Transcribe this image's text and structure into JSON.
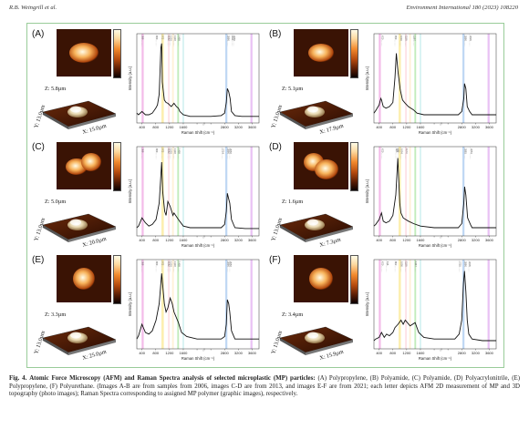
{
  "header": {
    "authors": "R.B. Weingrill et al.",
    "journal": "Environment International 180 (2023) 108220"
  },
  "panels": [
    {
      "letter": "(A)",
      "x_label": "X: 15.0µm",
      "y_label": "Y: 13.0µm",
      "z_label": "Z: 5.8µm",
      "peak_labels": [
        "398",
        "809",
        "972",
        "1152",
        "1219",
        "1330",
        "1458",
        "2880",
        "3011",
        "3059"
      ],
      "peak_colors": [
        "#e040c0",
        "#f5d020",
        "#50c840",
        "#4a90e0",
        "#c050e0"
      ]
    },
    {
      "letter": "(B)",
      "x_label": "X: 17.9µm",
      "y_label": "Y: 13.0µm",
      "z_label": "Z: 5.1µm",
      "peak_labels": [
        "470",
        "859",
        "1016",
        "1159",
        "1397",
        "2880",
        "3029"
      ],
      "peak_colors": [
        "#e040c0",
        "#f5d020",
        "#50c840",
        "#4a90e0",
        "#c050e0"
      ]
    },
    {
      "letter": "(C)",
      "x_label": "X: 20.0µm",
      "y_label": "Y: 13.0µm",
      "z_label": "Z: 5.0µm",
      "peak_labels": [
        "398",
        "809",
        "972",
        "1152",
        "1219",
        "1330",
        "1458",
        "2724",
        "2880",
        "2950"
      ],
      "peak_colors": [
        "#e040c0",
        "#f5d020",
        "#50c840",
        "#4a90e0",
        "#c050e0"
      ]
    },
    {
      "letter": "(D)",
      "x_label": "X: 7.3µm",
      "y_label": "Y: 13.0µm",
      "z_label": "Z: 1.6µm",
      "peak_labels": [
        "470",
        "885",
        "943",
        "1034",
        "1173",
        "2883",
        "3053"
      ],
      "peak_colors": [
        "#e040c0",
        "#f5d020",
        "#50c840",
        "#4a90e0",
        "#c050e0"
      ]
    },
    {
      "letter": "(E)",
      "x_label": "X: 25.0µm",
      "y_label": "Y: 13.0µm",
      "z_label": "Z: 3.3µm",
      "peak_labels": [
        "398",
        "809",
        "972",
        "1152",
        "1219",
        "1330",
        "1458",
        "2880",
        "2950"
      ],
      "peak_colors": [
        "#e040c0",
        "#f5d020",
        "#50c840",
        "#4a90e0",
        "#c050e0"
      ]
    },
    {
      "letter": "(F)",
      "x_label": "X: 15.9µm",
      "y_label": "Y: 13.0µm",
      "z_label": "Z: 3.4µm",
      "peak_labels": [
        "470",
        "616",
        "862",
        "1036",
        "1159",
        "1447",
        "2725",
        "2880",
        "3005"
      ],
      "peak_colors": [
        "#e040c0",
        "#f5d020",
        "#50c840",
        "#4a90e0",
        "#c050e0"
      ]
    }
  ],
  "spectra_axis": {
    "xlabel": "Raman Shift (cm⁻¹)",
    "ylabel": "Intensity (a.u.)",
    "xticks": [
      "400",
      "800",
      "1200",
      "1600",
      "2000",
      "2400",
      "2800",
      "3200",
      "3600"
    ],
    "xlim": [
      250,
      3800
    ]
  },
  "chart_data": [
    {
      "type": "line",
      "title": "(A)",
      "xlabel": "Raman Shift (cm⁻¹)",
      "ylabel": "Intensity (a.u.)",
      "xlim": [
        250,
        3800
      ],
      "x": [
        250,
        300,
        400,
        500,
        600,
        700,
        800,
        850,
        900,
        950,
        972,
        990,
        1050,
        1100,
        1152,
        1200,
        1250,
        1330,
        1400,
        1458,
        1500,
        1600,
        1800,
        2000,
        2400,
        2700,
        2800,
        2850,
        2880,
        2920,
        2960,
        3000,
        3100,
        3300,
        3600,
        3800
      ],
      "values": [
        0.12,
        0.1,
        0.14,
        0.1,
        0.1,
        0.12,
        0.18,
        0.22,
        0.35,
        0.92,
        0.97,
        0.5,
        0.28,
        0.25,
        0.24,
        0.22,
        0.2,
        0.24,
        0.2,
        0.18,
        0.14,
        0.1,
        0.08,
        0.08,
        0.08,
        0.09,
        0.12,
        0.25,
        0.42,
        0.38,
        0.3,
        0.14,
        0.09,
        0.08,
        0.08,
        0.08
      ]
    },
    {
      "type": "line",
      "title": "(B)",
      "xlabel": "Raman Shift (cm⁻¹)",
      "ylabel": "Intensity (a.u.)",
      "xlim": [
        250,
        3800
      ],
      "x": [
        250,
        300,
        400,
        450,
        470,
        520,
        600,
        700,
        800,
        860,
        900,
        950,
        1016,
        1080,
        1159,
        1250,
        1397,
        1500,
        1700,
        2000,
        2400,
        2700,
        2800,
        2860,
        2880,
        2920,
        2960,
        3029,
        3100,
        3400,
        3800
      ],
      "values": [
        0.12,
        0.15,
        0.22,
        0.3,
        0.28,
        0.2,
        0.18,
        0.2,
        0.25,
        0.55,
        0.85,
        0.62,
        0.4,
        0.28,
        0.24,
        0.2,
        0.16,
        0.12,
        0.1,
        0.1,
        0.1,
        0.1,
        0.14,
        0.3,
        0.48,
        0.42,
        0.2,
        0.14,
        0.1,
        0.1,
        0.1
      ]
    },
    {
      "type": "line",
      "title": "(C)",
      "xlabel": "Raman Shift (cm⁻¹)",
      "ylabel": "Intensity (a.u.)",
      "xlim": [
        250,
        3800
      ],
      "x": [
        250,
        300,
        400,
        500,
        600,
        700,
        809,
        900,
        972,
        1000,
        1060,
        1100,
        1152,
        1219,
        1300,
        1330,
        1458,
        1600,
        1800,
        2000,
        2400,
        2700,
        2800,
        2850,
        2880,
        2920,
        2950,
        3000,
        3100,
        3400,
        3800
      ],
      "values": [
        0.1,
        0.12,
        0.22,
        0.16,
        0.12,
        0.14,
        0.2,
        0.4,
        0.9,
        0.55,
        0.3,
        0.25,
        0.42,
        0.36,
        0.25,
        0.28,
        0.2,
        0.12,
        0.1,
        0.1,
        0.1,
        0.1,
        0.14,
        0.3,
        0.52,
        0.45,
        0.4,
        0.2,
        0.1,
        0.09,
        0.09
      ]
    },
    {
      "type": "line",
      "title": "(D)",
      "xlabel": "Raman Shift (cm⁻¹)",
      "ylabel": "Intensity (a.u.)",
      "xlim": [
        250,
        3800
      ],
      "x": [
        250,
        300,
        400,
        470,
        520,
        600,
        700,
        800,
        885,
        943,
        1000,
        1034,
        1100,
        1173,
        1250,
        1400,
        1600,
        2000,
        2400,
        2700,
        2800,
        2860,
        2883,
        2920,
        2970,
        3053,
        3100,
        3400,
        3800
      ],
      "values": [
        0.12,
        0.14,
        0.2,
        0.28,
        0.18,
        0.16,
        0.18,
        0.25,
        0.5,
        0.95,
        0.4,
        0.28,
        0.22,
        0.2,
        0.18,
        0.15,
        0.12,
        0.1,
        0.1,
        0.1,
        0.15,
        0.4,
        0.6,
        0.5,
        0.22,
        0.14,
        0.1,
        0.1,
        0.1
      ]
    },
    {
      "type": "line",
      "title": "(E)",
      "xlabel": "Raman Shift (cm⁻¹)",
      "ylabel": "Intensity (a.u.)",
      "xlim": [
        250,
        3800
      ],
      "x": [
        250,
        300,
        398,
        500,
        600,
        700,
        809,
        900,
        972,
        1050,
        1100,
        1152,
        1219,
        1280,
        1330,
        1400,
        1458,
        1550,
        1700,
        2000,
        2400,
        2700,
        2800,
        2850,
        2880,
        2920,
        2950,
        3000,
        3100,
        3400,
        3800
      ],
      "values": [
        0.12,
        0.16,
        0.3,
        0.2,
        0.18,
        0.22,
        0.35,
        0.55,
        0.92,
        0.55,
        0.45,
        0.5,
        0.62,
        0.55,
        0.45,
        0.38,
        0.32,
        0.2,
        0.15,
        0.12,
        0.12,
        0.12,
        0.15,
        0.3,
        0.6,
        0.55,
        0.45,
        0.22,
        0.12,
        0.12,
        0.12
      ]
    },
    {
      "type": "line",
      "title": "(F)",
      "xlabel": "Raman Shift (cm⁻¹)",
      "ylabel": "Intensity (a.u.)",
      "xlim": [
        250,
        3800
      ],
      "x": [
        250,
        300,
        400,
        470,
        550,
        616,
        700,
        800,
        862,
        950,
        1036,
        1100,
        1159,
        1300,
        1447,
        1550,
        1700,
        2000,
        2400,
        2600,
        2725,
        2800,
        2850,
        2880,
        2920,
        2960,
        3005,
        3100,
        3400,
        3800
      ],
      "values": [
        0.1,
        0.12,
        0.14,
        0.2,
        0.14,
        0.18,
        0.16,
        0.2,
        0.26,
        0.3,
        0.35,
        0.3,
        0.35,
        0.28,
        0.32,
        0.2,
        0.14,
        0.12,
        0.12,
        0.12,
        0.18,
        0.35,
        0.8,
        0.95,
        0.7,
        0.35,
        0.18,
        0.12,
        0.1,
        0.1
      ]
    }
  ],
  "caption": {
    "label": "Fig. 4.",
    "title": "Atomic Force Microscopy (AFM) and Raman Spectra analysis of selected microplastic (MP) particles:",
    "body": "(A) Polypropylene, (B) Polyamide, (C) Polyamide, (D) Polyacrylonitrile, (E) Polypropylene, (F) Polyurethane. (Images A-B are from samples from 2006, images C-D are from 2013, and images E-F are from 2021; each letter depicts AFM 2D measurement of MP and 3D topography (photo images); Raman Spectra corresponding to assigned MP polymer (graphic images), respectively."
  }
}
